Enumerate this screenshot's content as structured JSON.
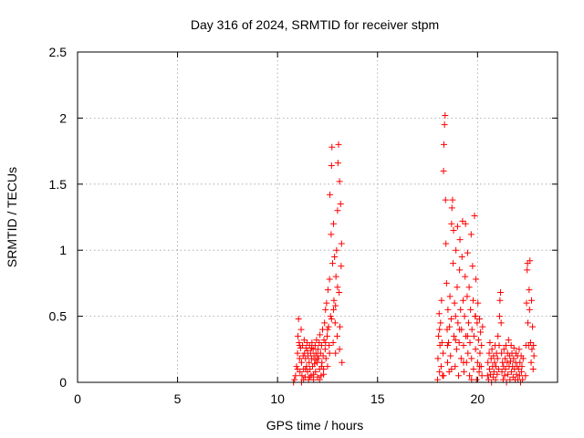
{
  "chart_data": {
    "type": "scatter",
    "title": "Day 316 of 2024, SRMTID for receiver stpm",
    "xlabel": "GPS time / hours",
    "ylabel": "SRMTID / TECUs",
    "xlim": [
      0,
      24
    ],
    "ylim": [
      0,
      2.5
    ],
    "xticks": [
      0,
      5,
      10,
      15,
      20
    ],
    "xtick_labels": [
      "0",
      "5",
      "10",
      "15",
      "20"
    ],
    "yticks": [
      0,
      0.5,
      1,
      1.5,
      2,
      2.5
    ],
    "ytick_labels": [
      "0",
      "0.5",
      "1",
      "1.5",
      "2",
      "2.5"
    ],
    "grid": true,
    "marker": "+",
    "color": "#ff0000",
    "series": [
      {
        "name": "SRMTID",
        "points": [
          [
            10.8,
            0.0
          ],
          [
            10.85,
            0.02
          ],
          [
            10.9,
            0.05
          ],
          [
            10.95,
            0.12
          ],
          [
            11.0,
            0.22
          ],
          [
            11.02,
            0.35
          ],
          [
            11.05,
            0.48
          ],
          [
            11.08,
            0.3
          ],
          [
            11.1,
            0.18
          ],
          [
            11.12,
            0.08
          ],
          [
            11.15,
            0.26
          ],
          [
            11.18,
            0.4
          ],
          [
            11.2,
            0.15
          ],
          [
            11.22,
            0.05
          ],
          [
            11.25,
            0.28
          ],
          [
            11.28,
            0.2
          ],
          [
            11.3,
            0.1
          ],
          [
            11.33,
            0.32
          ],
          [
            11.35,
            0.22
          ],
          [
            11.38,
            0.04
          ],
          [
            11.4,
            0.18
          ],
          [
            11.42,
            0.26
          ],
          [
            11.45,
            0.12
          ],
          [
            11.48,
            0.3
          ],
          [
            11.5,
            0.08
          ],
          [
            11.52,
            0.2
          ],
          [
            11.55,
            0.02
          ],
          [
            11.58,
            0.15
          ],
          [
            11.6,
            0.28
          ],
          [
            11.62,
            0.1
          ],
          [
            11.65,
            0.22
          ],
          [
            11.68,
            0.05
          ],
          [
            11.7,
            0.18
          ],
          [
            11.72,
            0.3
          ],
          [
            11.75,
            0.12
          ],
          [
            11.78,
            0.25
          ],
          [
            11.8,
            0.06
          ],
          [
            11.82,
            0.2
          ],
          [
            11.85,
            0.14
          ],
          [
            11.88,
            0.28
          ],
          [
            11.9,
            0.08
          ],
          [
            11.92,
            0.22
          ],
          [
            11.95,
            0.32
          ],
          [
            11.98,
            0.15
          ],
          [
            12.0,
            0.04
          ],
          [
            12.02,
            0.25
          ],
          [
            12.05,
            0.18
          ],
          [
            12.08,
            0.3
          ],
          [
            12.1,
            0.1
          ],
          [
            12.12,
            0.36
          ],
          [
            12.15,
            0.22
          ],
          [
            12.18,
            0.05
          ],
          [
            12.2,
            0.28
          ],
          [
            12.22,
            0.15
          ],
          [
            12.25,
            0.4
          ],
          [
            12.28,
            0.2
          ],
          [
            12.3,
            0.1
          ],
          [
            12.32,
            0.32
          ],
          [
            12.35,
            0.45
          ],
          [
            12.38,
            0.25
          ],
          [
            12.4,
            0.55
          ],
          [
            12.42,
            0.18
          ],
          [
            12.45,
            0.6
          ],
          [
            12.48,
            0.35
          ],
          [
            12.5,
            0.12
          ],
          [
            12.52,
            0.7
          ],
          [
            12.55,
            0.42
          ],
          [
            12.58,
            0.28
          ],
          [
            12.6,
            0.78
          ],
          [
            12.62,
            1.42
          ],
          [
            12.65,
            0.5
          ],
          [
            12.68,
            1.12
          ],
          [
            12.7,
            1.64
          ],
          [
            12.72,
            1.78
          ],
          [
            12.75,
            0.9
          ],
          [
            12.78,
            0.3
          ],
          [
            12.8,
            1.2
          ],
          [
            12.82,
            0.62
          ],
          [
            12.85,
            0.95
          ],
          [
            12.88,
            0.45
          ],
          [
            12.9,
            0.22
          ],
          [
            12.92,
            0.8
          ],
          [
            12.95,
            1.0
          ],
          [
            12.98,
            0.35
          ],
          [
            13.0,
            1.3
          ],
          [
            13.02,
            1.66
          ],
          [
            13.05,
            1.8
          ],
          [
            13.08,
            0.68
          ],
          [
            13.1,
            1.52
          ],
          [
            13.12,
            0.42
          ],
          [
            13.15,
            1.35
          ],
          [
            13.18,
            0.88
          ],
          [
            13.2,
            1.05
          ],
          [
            13.22,
            0.15
          ],
          [
            11.0,
            0.1
          ],
          [
            11.1,
            0.28
          ],
          [
            11.2,
            0.0
          ],
          [
            11.3,
            0.02
          ],
          [
            11.4,
            0.1
          ],
          [
            11.5,
            0.24
          ],
          [
            11.6,
            0.04
          ],
          [
            11.7,
            0.26
          ],
          [
            11.8,
            0.02
          ],
          [
            11.9,
            0.17
          ],
          [
            12.0,
            0.2
          ],
          [
            12.1,
            0.02
          ],
          [
            12.2,
            0.12
          ],
          [
            12.3,
            0.06
          ],
          [
            12.4,
            0.3
          ],
          [
            12.5,
            0.4
          ],
          [
            12.6,
            0.22
          ],
          [
            12.7,
            0.48
          ],
          [
            12.8,
            0.55
          ],
          [
            12.9,
            0.58
          ],
          [
            13.0,
            0.72
          ],
          [
            13.1,
            0.25
          ],
          [
            18.0,
            0.02
          ],
          [
            18.02,
            0.18
          ],
          [
            18.05,
            0.35
          ],
          [
            18.08,
            0.52
          ],
          [
            18.1,
            0.08
          ],
          [
            18.12,
            0.28
          ],
          [
            18.15,
            0.45
          ],
          [
            18.18,
            0.12
          ],
          [
            18.2,
            0.62
          ],
          [
            18.22,
            0.3
          ],
          [
            18.25,
            0.05
          ],
          [
            18.28,
            0.22
          ],
          [
            18.3,
            1.6
          ],
          [
            18.32,
            1.8
          ],
          [
            18.35,
            1.95
          ],
          [
            18.38,
            2.02
          ],
          [
            18.4,
            1.38
          ],
          [
            18.42,
            1.05
          ],
          [
            18.45,
            0.75
          ],
          [
            18.48,
            0.4
          ],
          [
            18.5,
            0.15
          ],
          [
            18.52,
            0.55
          ],
          [
            18.55,
            0.3
          ],
          [
            18.58,
            0.08
          ],
          [
            18.6,
            0.42
          ],
          [
            18.62,
            0.65
          ],
          [
            18.65,
            0.2
          ],
          [
            18.68,
            0.48
          ],
          [
            18.7,
            1.2
          ],
          [
            18.72,
            1.32
          ],
          [
            18.75,
            1.38
          ],
          [
            18.78,
            0.9
          ],
          [
            18.8,
            1.15
          ],
          [
            18.82,
            0.35
          ],
          [
            18.85,
            0.6
          ],
          [
            18.88,
            0.12
          ],
          [
            18.9,
            0.5
          ],
          [
            18.92,
            1.0
          ],
          [
            18.95,
            0.25
          ],
          [
            18.98,
            0.72
          ],
          [
            19.0,
            1.18
          ],
          [
            19.02,
            0.45
          ],
          [
            19.05,
            0.05
          ],
          [
            19.08,
            0.3
          ],
          [
            19.1,
            0.85
          ],
          [
            19.12,
            1.08
          ],
          [
            19.15,
            0.55
          ],
          [
            19.18,
            0.18
          ],
          [
            19.2,
            0.4
          ],
          [
            19.22,
            0.95
          ],
          [
            19.25,
            1.22
          ],
          [
            19.28,
            0.62
          ],
          [
            19.3,
            0.28
          ],
          [
            19.32,
            0.08
          ],
          [
            19.35,
            0.5
          ],
          [
            19.38,
            0.8
          ],
          [
            19.4,
            1.2
          ],
          [
            19.42,
            0.35
          ],
          [
            19.45,
            0.15
          ],
          [
            19.48,
            0.65
          ],
          [
            19.5,
            0.98
          ],
          [
            19.52,
            0.22
          ],
          [
            19.55,
            0.45
          ],
          [
            19.58,
            0.72
          ],
          [
            19.6,
            0.05
          ],
          [
            19.62,
            0.3
          ],
          [
            19.65,
            0.55
          ],
          [
            19.68,
            1.12
          ],
          [
            19.7,
            0.18
          ],
          [
            19.72,
            0.4
          ],
          [
            19.75,
            0.88
          ],
          [
            19.78,
            0.62
          ],
          [
            19.8,
            0.1
          ],
          [
            19.82,
            0.35
          ],
          [
            19.85,
            1.26
          ],
          [
            19.88,
            0.5
          ],
          [
            19.9,
            0.25
          ],
          [
            19.92,
            0.78
          ],
          [
            19.95,
            0.02
          ],
          [
            19.98,
            0.45
          ],
          [
            20.0,
            0.15
          ],
          [
            20.02,
            0.6
          ],
          [
            20.05,
            0.32
          ],
          [
            20.08,
            0.08
          ],
          [
            20.1,
            0.48
          ],
          [
            20.12,
            0.22
          ],
          [
            20.15,
            0.38
          ],
          [
            20.18,
            0.12
          ],
          [
            20.2,
            0.28
          ],
          [
            20.22,
            0.05
          ],
          [
            20.25,
            0.42
          ],
          [
            18.1,
            0.4
          ],
          [
            18.3,
            0.05
          ],
          [
            18.5,
            0.28
          ],
          [
            18.7,
            0.1
          ],
          [
            18.9,
            0.32
          ],
          [
            19.1,
            0.4
          ],
          [
            19.3,
            0.15
          ],
          [
            19.5,
            0.35
          ],
          [
            19.7,
            0.02
          ],
          [
            19.9,
            0.5
          ],
          [
            20.1,
            0.12
          ],
          [
            20.5,
            0.05
          ],
          [
            20.52,
            0.15
          ],
          [
            20.55,
            0.02
          ],
          [
            20.58,
            0.22
          ],
          [
            20.6,
            0.1
          ],
          [
            20.62,
            0.3
          ],
          [
            20.65,
            0.06
          ],
          [
            20.68,
            0.18
          ],
          [
            20.7,
            0.0
          ],
          [
            20.72,
            0.25
          ],
          [
            20.75,
            0.12
          ],
          [
            20.78,
            0.04
          ],
          [
            20.8,
            0.2
          ],
          [
            20.82,
            0.08
          ],
          [
            20.85,
            0.15
          ],
          [
            20.88,
            0.28
          ],
          [
            20.9,
            0.02
          ],
          [
            20.92,
            0.12
          ],
          [
            20.95,
            0.22
          ],
          [
            20.98,
            0.06
          ],
          [
            21.0,
            0.18
          ],
          [
            21.02,
            0.35
          ],
          [
            21.05,
            0.1
          ],
          [
            21.08,
            0.28
          ],
          [
            21.1,
            0.5
          ],
          [
            21.12,
            0.62
          ],
          [
            21.15,
            0.68
          ],
          [
            21.18,
            0.45
          ],
          [
            21.2,
            0.22
          ],
          [
            21.22,
            0.08
          ],
          [
            21.25,
            0.15
          ],
          [
            21.28,
            0.02
          ],
          [
            21.3,
            0.12
          ],
          [
            21.32,
            0.25
          ],
          [
            21.35,
            0.05
          ],
          [
            21.38,
            0.18
          ],
          [
            21.4,
            0.1
          ],
          [
            21.42,
            0.28
          ],
          [
            21.45,
            0.0
          ],
          [
            21.48,
            0.15
          ],
          [
            21.5,
            0.22
          ],
          [
            21.52,
            0.06
          ],
          [
            21.55,
            0.32
          ],
          [
            21.58,
            0.12
          ],
          [
            21.6,
            0.2
          ],
          [
            21.62,
            0.02
          ],
          [
            21.65,
            0.16
          ],
          [
            21.68,
            0.28
          ],
          [
            21.7,
            0.08
          ],
          [
            21.72,
            0.22
          ],
          [
            21.75,
            0.12
          ],
          [
            21.78,
            0.04
          ],
          [
            21.8,
            0.18
          ],
          [
            21.82,
            0.26
          ],
          [
            21.85,
            0.1
          ],
          [
            21.88,
            0.02
          ],
          [
            21.9,
            0.15
          ],
          [
            21.92,
            0.22
          ],
          [
            21.95,
            0.06
          ],
          [
            21.98,
            0.12
          ],
          [
            22.0,
            0.2
          ],
          [
            22.02,
            0.02
          ],
          [
            22.05,
            0.1
          ],
          [
            22.08,
            0.25
          ],
          [
            22.1,
            0.05
          ],
          [
            22.12,
            0.15
          ],
          [
            22.15,
            0.0
          ],
          [
            22.18,
            0.2
          ],
          [
            22.2,
            0.08
          ],
          [
            22.22,
            0.12
          ],
          [
            22.25,
            0.02
          ],
          [
            22.28,
            0.18
          ],
          [
            22.4,
            0.05
          ],
          [
            22.42,
            0.28
          ],
          [
            22.45,
            0.6
          ],
          [
            22.48,
            0.85
          ],
          [
            22.5,
            0.9
          ],
          [
            22.52,
            0.45
          ],
          [
            22.55,
            0.28
          ],
          [
            22.58,
            0.7
          ],
          [
            22.6,
            0.55
          ],
          [
            22.62,
            0.92
          ],
          [
            22.65,
            0.3
          ],
          [
            22.68,
            0.15
          ],
          [
            22.7,
            0.62
          ],
          [
            22.72,
            0.25
          ],
          [
            22.75,
            0.42
          ],
          [
            22.78,
            0.1
          ],
          [
            22.8,
            0.28
          ],
          [
            22.82,
            0.2
          ]
        ]
      }
    ]
  }
}
